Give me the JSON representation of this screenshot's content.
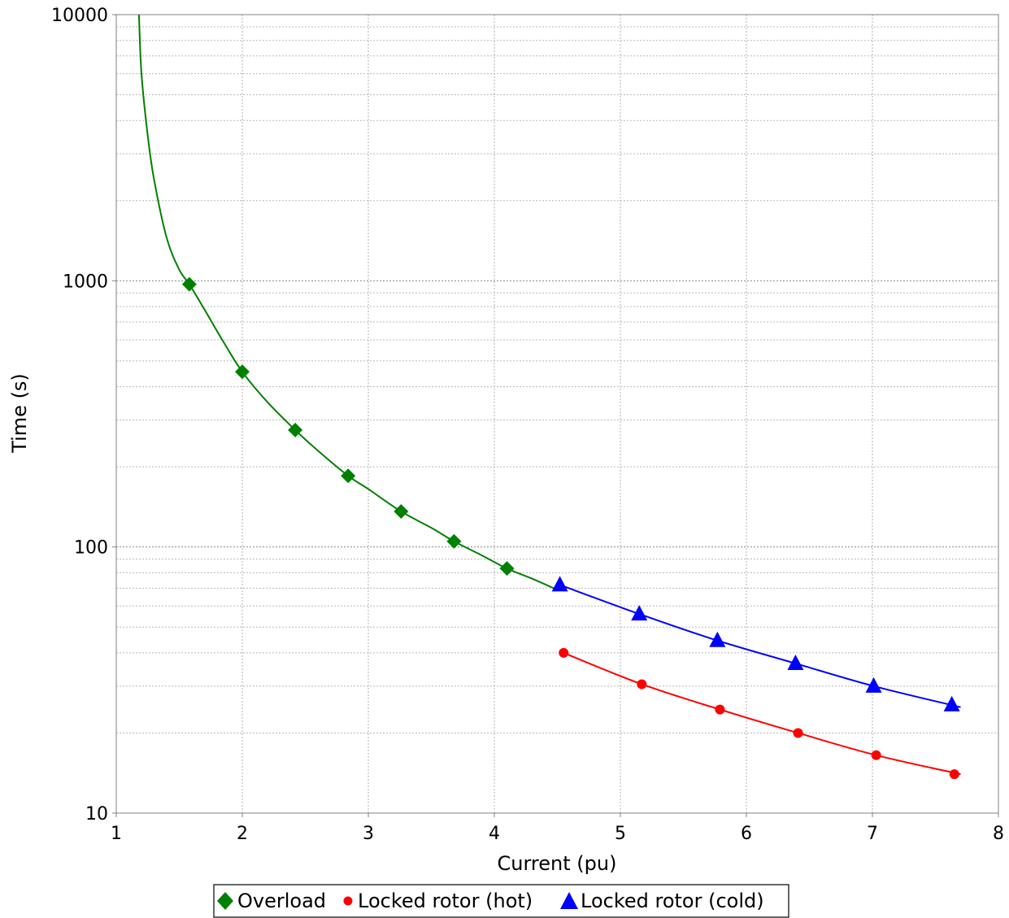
{
  "chart_data": {
    "type": "line",
    "xlabel": "Current (pu)",
    "ylabel": "Time (s)",
    "xlim": [
      1,
      8
    ],
    "ylim": [
      10,
      10000
    ],
    "y_scale": "log",
    "x_ticks": [
      "1",
      "2",
      "3",
      "4",
      "5",
      "6",
      "7",
      "8"
    ],
    "y_ticks": [
      "10",
      "100",
      "1000",
      "10000"
    ],
    "grid": true,
    "legend_position": "bottom-center",
    "series": [
      {
        "name": "Overload",
        "color": "#008000",
        "marker": "diamond",
        "curve": {
          "x": [
            1.18,
            1.2,
            1.25,
            1.3,
            1.4,
            1.5,
            1.58,
            1.7,
            1.85,
            2.0,
            2.2,
            2.42,
            2.6,
            2.84,
            3.0,
            3.26,
            3.5,
            3.68,
            3.9,
            4.1,
            4.3,
            4.5
          ],
          "y": [
            10000,
            6000,
            3500,
            2400,
            1450,
            1100,
            970,
            780,
            590,
            455,
            350,
            275,
            230,
            185,
            165,
            136,
            118,
            105,
            93,
            83,
            76,
            69
          ]
        },
        "points": {
          "x": [
            1.58,
            2.0,
            2.42,
            2.84,
            3.26,
            3.68,
            4.1
          ],
          "y": [
            970,
            455,
            275,
            185,
            136,
            105,
            83
          ]
        }
      },
      {
        "name": "Locked rotor (hot)",
        "color": "#ff0000",
        "marker": "circle",
        "curve": {
          "x": [
            4.55,
            5.17,
            5.79,
            6.41,
            7.03,
            7.7
          ],
          "y": [
            40,
            30.5,
            24.5,
            20,
            16.5,
            14
          ]
        },
        "points": {
          "x": [
            4.55,
            5.17,
            5.79,
            6.41,
            7.03,
            7.65
          ],
          "y": [
            40,
            30.5,
            24.5,
            20,
            16.5,
            14
          ]
        }
      },
      {
        "name": "Locked rotor (cold)",
        "color": "#0000ff",
        "marker": "triangle",
        "curve": {
          "x": [
            4.52,
            5.15,
            5.77,
            6.39,
            7.01,
            7.7
          ],
          "y": [
            72,
            56,
            44.5,
            36.5,
            30,
            25
          ]
        },
        "points": {
          "x": [
            4.52,
            5.15,
            5.77,
            6.39,
            7.01,
            7.63
          ],
          "y": [
            72,
            56,
            44.5,
            36.5,
            30,
            25.5
          ]
        }
      }
    ]
  }
}
